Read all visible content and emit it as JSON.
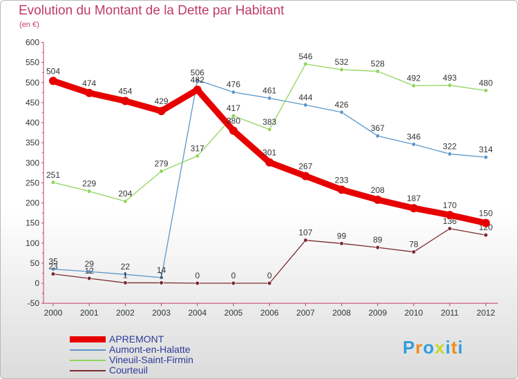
{
  "chart_data": {
    "type": "line",
    "title": "Evolution du Montant de la Dette par Habitant",
    "subtitle": "(en €)",
    "xlabel": "",
    "ylabel": "",
    "ylim": [
      -50,
      600
    ],
    "yticks": [
      -50,
      0,
      50,
      100,
      150,
      200,
      250,
      300,
      350,
      400,
      450,
      500,
      550,
      600
    ],
    "grid": false,
    "legend_position": "bottom-left",
    "categories": [
      "2000",
      "2001",
      "2002",
      "2003",
      "2004",
      "2005",
      "2006",
      "2007",
      "2008",
      "2009",
      "2010",
      "2011",
      "2012"
    ],
    "series": [
      {
        "name": "APREMONT",
        "color": "#e60000",
        "emphasis": true,
        "values": [
          504,
          474,
          454,
          429,
          482,
          380,
          301,
          267,
          233,
          208,
          187,
          170,
          150
        ]
      },
      {
        "name": "Aumont-en-Halatte",
        "color": "#5a96c8",
        "values": [
          35,
          29,
          22,
          14,
          506,
          476,
          461,
          444,
          426,
          367,
          346,
          322,
          314
        ]
      },
      {
        "name": "Vineuil-Saint-Firmin",
        "color": "#8fd45c",
        "values": [
          251,
          229,
          204,
          279,
          317,
          417,
          383,
          546,
          532,
          528,
          492,
          493,
          480
        ]
      },
      {
        "name": "Courteuil",
        "color": "#7a2a2e",
        "values": [
          23,
          12,
          1,
          1,
          0,
          0,
          0,
          107,
          99,
          89,
          78,
          136,
          120
        ]
      }
    ]
  },
  "logo": {
    "letters": [
      "P",
      "r",
      "o",
      "x",
      "i",
      "t",
      "i"
    ],
    "colors": [
      "#2f9ee0",
      "#f08a1c",
      "#2f9ee0",
      "#c4d82c",
      "#2f9ee0",
      "#f08a1c",
      "#2f9ee0"
    ]
  }
}
